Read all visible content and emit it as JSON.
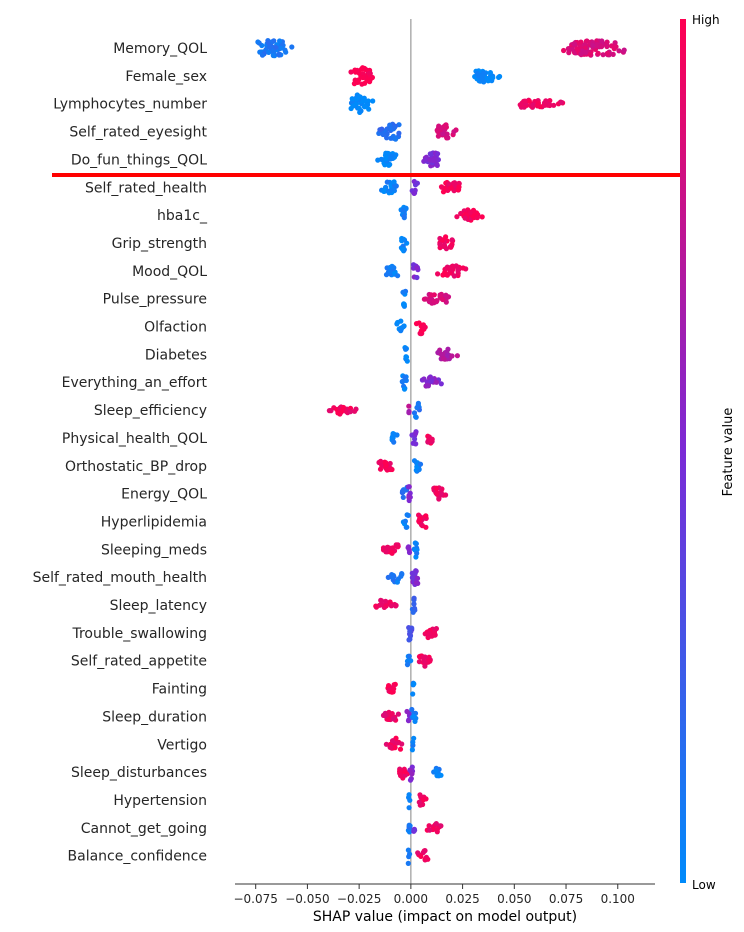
{
  "chart_data": {
    "type": "scatter",
    "subtype": "shap-beeswarm",
    "title": "",
    "xlabel": "SHAP value (impact on model output)",
    "ylabel": "",
    "xlim": [
      -0.085,
      0.118
    ],
    "xticks": [
      -0.075,
      -0.05,
      -0.025,
      0.0,
      0.025,
      0.05,
      0.075,
      0.1
    ],
    "xtick_labels": [
      "−0.075",
      "−0.050",
      "−0.025",
      "0.000",
      "0.025",
      "0.050",
      "0.075",
      "0.100"
    ],
    "colorbar": {
      "label": "Feature value",
      "high_label": "High",
      "low_label": "Low",
      "high_color": "#ff0052",
      "low_color": "#008bfb"
    },
    "highlight_line_after_feature": "Do_fun_things_QOL",
    "highlight_line_color": "#ff0000",
    "features": [
      {
        "name": "Memory_QOL",
        "clusters": [
          {
            "min": -0.077,
            "max": -0.055,
            "center": -0.068,
            "value": 0.1,
            "spread": 0.9
          },
          {
            "min": 0.068,
            "max": 0.109,
            "center": 0.09,
            "value": 0.85,
            "spread": 0.8
          }
        ]
      },
      {
        "name": "Female_sex",
        "clusters": [
          {
            "min": -0.031,
            "max": -0.016,
            "center": -0.025,
            "value": 1.0,
            "spread": 1.0
          },
          {
            "min": 0.027,
            "max": 0.044,
            "center": 0.036,
            "value": 0.0,
            "spread": 0.7
          }
        ]
      },
      {
        "name": "Lymphocytes_number",
        "clusters": [
          {
            "min": -0.032,
            "max": -0.017,
            "center": -0.025,
            "value": 0.0,
            "spread": 1.0
          },
          {
            "min": 0.048,
            "max": 0.076,
            "center": 0.06,
            "value": 0.95,
            "spread": 0.3
          }
        ]
      },
      {
        "name": "Self_rated_eyesight",
        "clusters": [
          {
            "min": -0.017,
            "max": -0.003,
            "center": -0.008,
            "value": 0.15,
            "spread": 0.8
          },
          {
            "min": 0.009,
            "max": 0.023,
            "center": 0.016,
            "value": 0.85,
            "spread": 0.7
          }
        ]
      },
      {
        "name": "Do_fun_things_QOL",
        "clusters": [
          {
            "min": -0.017,
            "max": -0.004,
            "center": -0.011,
            "value": 0.0,
            "spread": 0.7
          },
          {
            "min": 0.004,
            "max": 0.017,
            "center": 0.011,
            "value": 0.5,
            "spread": 0.7
          }
        ]
      },
      {
        "name": "Self_rated_health",
        "clusters": [
          {
            "min": -0.017,
            "max": -0.004,
            "center": -0.01,
            "value": 0.05,
            "spread": 0.6
          },
          {
            "min": 0.0,
            "max": 0.004,
            "center": 0.002,
            "value": 0.45,
            "spread": 0.7
          },
          {
            "min": 0.012,
            "max": 0.028,
            "center": 0.019,
            "value": 0.95,
            "spread": 0.5
          }
        ]
      },
      {
        "name": "hba1c_",
        "clusters": [
          {
            "min": -0.006,
            "max": -0.001,
            "center": -0.003,
            "value": 0.05,
            "spread": 0.9
          },
          {
            "min": 0.018,
            "max": 0.039,
            "center": 0.027,
            "value": 0.95,
            "spread": 0.5
          }
        ]
      },
      {
        "name": "Grip_strength",
        "clusters": [
          {
            "min": -0.006,
            "max": -0.001,
            "center": -0.003,
            "value": 0.05,
            "spread": 0.9
          },
          {
            "min": 0.011,
            "max": 0.023,
            "center": 0.017,
            "value": 0.95,
            "spread": 0.6
          }
        ]
      },
      {
        "name": "Mood_QOL",
        "clusters": [
          {
            "min": -0.015,
            "max": -0.004,
            "center": -0.009,
            "value": 0.05,
            "spread": 0.6
          },
          {
            "min": 0.0,
            "max": 0.005,
            "center": 0.002,
            "value": 0.5,
            "spread": 0.8
          },
          {
            "min": 0.01,
            "max": 0.029,
            "center": 0.019,
            "value": 0.95,
            "spread": 0.5
          }
        ]
      },
      {
        "name": "Pulse_pressure",
        "clusters": [
          {
            "min": -0.005,
            "max": -0.001,
            "center": -0.003,
            "value": 0.05,
            "spread": 0.9
          },
          {
            "min": 0.004,
            "max": 0.021,
            "center": 0.013,
            "value": 0.85,
            "spread": 0.5
          }
        ]
      },
      {
        "name": "Olfaction",
        "clusters": [
          {
            "min": -0.008,
            "max": -0.002,
            "center": -0.005,
            "value": 0.05,
            "spread": 0.6
          },
          {
            "min": 0.002,
            "max": 0.008,
            "center": 0.005,
            "value": 1.0,
            "spread": 0.9
          }
        ]
      },
      {
        "name": "Diabetes",
        "clusters": [
          {
            "min": -0.004,
            "max": -0.001,
            "center": -0.002,
            "value": 0.0,
            "spread": 0.9
          },
          {
            "min": 0.01,
            "max": 0.023,
            "center": 0.017,
            "value": 0.7,
            "spread": 0.5
          }
        ]
      },
      {
        "name": "Everything_an_effort",
        "clusters": [
          {
            "min": -0.005,
            "max": -0.001,
            "center": -0.003,
            "value": 0.05,
            "spread": 0.9
          },
          {
            "min": 0.004,
            "max": 0.016,
            "center": 0.009,
            "value": 0.55,
            "spread": 0.5
          }
        ]
      },
      {
        "name": "Sleep_efficiency",
        "clusters": [
          {
            "min": -0.042,
            "max": -0.025,
            "center": -0.034,
            "value": 0.95,
            "spread": 0.3
          },
          {
            "min": -0.002,
            "max": 0.0,
            "center": -0.001,
            "value": 0.7,
            "spread": 0.3
          },
          {
            "min": 0.001,
            "max": 0.005,
            "center": 0.003,
            "value": 0.1,
            "spread": 0.9
          }
        ]
      },
      {
        "name": "Physical_health_QOL",
        "clusters": [
          {
            "min": -0.011,
            "max": -0.006,
            "center": -0.008,
            "value": 0.05,
            "spread": 0.6
          },
          {
            "min": 0.0,
            "max": 0.004,
            "center": 0.002,
            "value": 0.5,
            "spread": 0.8
          },
          {
            "min": 0.006,
            "max": 0.012,
            "center": 0.009,
            "value": 0.95,
            "spread": 0.5
          }
        ]
      },
      {
        "name": "Orthostatic_BP_drop",
        "clusters": [
          {
            "min": -0.019,
            "max": -0.006,
            "center": -0.012,
            "value": 0.95,
            "spread": 0.5
          },
          {
            "min": 0.001,
            "max": 0.006,
            "center": 0.003,
            "value": 0.05,
            "spread": 0.9
          }
        ]
      },
      {
        "name": "Energy_QOL",
        "clusters": [
          {
            "min": -0.005,
            "max": 0.0,
            "center": -0.002,
            "value": 0.15,
            "spread": 0.6
          },
          {
            "min": -0.002,
            "max": 0.001,
            "center": -0.001,
            "value": 0.55,
            "spread": 0.9
          },
          {
            "min": 0.008,
            "max": 0.018,
            "center": 0.013,
            "value": 0.95,
            "spread": 0.6
          }
        ]
      },
      {
        "name": "Hyperlipidemia",
        "clusters": [
          {
            "min": -0.004,
            "max": -0.001,
            "center": -0.002,
            "value": 0.05,
            "spread": 0.9
          },
          {
            "min": 0.002,
            "max": 0.01,
            "center": 0.005,
            "value": 0.95,
            "spread": 0.8
          }
        ]
      },
      {
        "name": "Sleeping_meds",
        "clusters": [
          {
            "min": -0.015,
            "max": -0.003,
            "center": -0.008,
            "value": 0.95,
            "spread": 0.5
          },
          {
            "min": -0.002,
            "max": 0.0,
            "center": -0.001,
            "value": 0.5,
            "spread": 0.4
          },
          {
            "min": 0.0,
            "max": 0.004,
            "center": 0.002,
            "value": 0.05,
            "spread": 0.9
          }
        ]
      },
      {
        "name": "Self_rated_mouth_health",
        "clusters": [
          {
            "min": -0.012,
            "max": -0.002,
            "center": -0.007,
            "value": 0.1,
            "spread": 0.5
          },
          {
            "min": -0.001,
            "max": 0.005,
            "center": 0.002,
            "value": 0.5,
            "spread": 0.9
          }
        ]
      },
      {
        "name": "Sleep_latency",
        "clusters": [
          {
            "min": -0.019,
            "max": -0.005,
            "center": -0.012,
            "value": 0.95,
            "spread": 0.5
          },
          {
            "min": 0.0,
            "max": 0.003,
            "center": 0.001,
            "value": 0.2,
            "spread": 0.9
          }
        ]
      },
      {
        "name": "Trouble_swallowing",
        "clusters": [
          {
            "min": -0.003,
            "max": 0.002,
            "center": 0.0,
            "value": 0.3,
            "spread": 0.9
          },
          {
            "min": 0.004,
            "max": 0.015,
            "center": 0.01,
            "value": 0.95,
            "spread": 0.5
          }
        ]
      },
      {
        "name": "Self_rated_appetite",
        "clusters": [
          {
            "min": -0.003,
            "max": 0.0,
            "center": -0.002,
            "value": 0.05,
            "spread": 0.9
          },
          {
            "min": 0.001,
            "max": 0.011,
            "center": 0.005,
            "value": 0.95,
            "spread": 0.6
          }
        ]
      },
      {
        "name": "Fainting",
        "clusters": [
          {
            "min": -0.014,
            "max": -0.005,
            "center": -0.01,
            "value": 0.95,
            "spread": 0.5
          },
          {
            "min": 0.0,
            "max": 0.002,
            "center": 0.001,
            "value": 0.05,
            "spread": 0.9
          }
        ]
      },
      {
        "name": "Sleep_duration",
        "clusters": [
          {
            "min": -0.016,
            "max": -0.004,
            "center": -0.008,
            "value": 0.9,
            "spread": 0.4
          },
          {
            "min": -0.003,
            "max": 0.0,
            "center": -0.002,
            "value": 0.55,
            "spread": 0.5
          },
          {
            "min": 0.0,
            "max": 0.003,
            "center": 0.001,
            "value": 0.05,
            "spread": 0.9
          }
        ]
      },
      {
        "name": "Vertigo",
        "clusters": [
          {
            "min": -0.013,
            "max": -0.002,
            "center": -0.007,
            "value": 0.95,
            "spread": 0.6
          },
          {
            "min": 0.0,
            "max": 0.002,
            "center": 0.001,
            "value": 0.05,
            "spread": 0.9
          }
        ]
      },
      {
        "name": "Sleep_disturbances",
        "clusters": [
          {
            "min": -0.007,
            "max": -0.001,
            "center": -0.004,
            "value": 0.95,
            "spread": 0.6
          },
          {
            "min": -0.001,
            "max": 0.002,
            "center": 0.0,
            "value": 0.55,
            "spread": 0.9
          },
          {
            "min": 0.009,
            "max": 0.016,
            "center": 0.013,
            "value": 0.05,
            "spread": 0.4
          }
        ]
      },
      {
        "name": "Hypertension",
        "clusters": [
          {
            "min": -0.002,
            "max": 0.0,
            "center": -0.001,
            "value": 0.05,
            "spread": 0.9
          },
          {
            "min": 0.002,
            "max": 0.008,
            "center": 0.005,
            "value": 0.95,
            "spread": 0.5
          }
        ]
      },
      {
        "name": "Cannot_get_going",
        "clusters": [
          {
            "min": -0.002,
            "max": 0.001,
            "center": -0.001,
            "value": 0.1,
            "spread": 0.9
          },
          {
            "min": 0.0,
            "max": 0.003,
            "center": 0.002,
            "value": 0.5,
            "spread": 0.4
          },
          {
            "min": 0.007,
            "max": 0.016,
            "center": 0.011,
            "value": 0.95,
            "spread": 0.4
          }
        ]
      },
      {
        "name": "Balance_confidence",
        "clusters": [
          {
            "min": -0.002,
            "max": 0.0,
            "center": -0.001,
            "value": 0.05,
            "spread": 0.9
          },
          {
            "min": 0.002,
            "max": 0.009,
            "center": 0.006,
            "value": 0.95,
            "spread": 0.5
          }
        ]
      }
    ]
  }
}
